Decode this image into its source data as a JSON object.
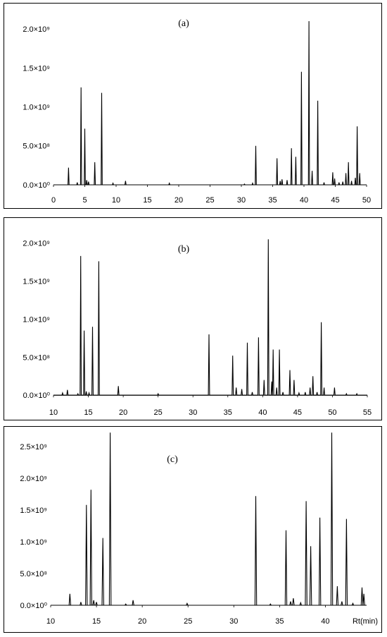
{
  "chart_data": [
    {
      "type": "line",
      "title": "(a)",
      "xlabel": "",
      "ylabel": "",
      "xlim": [
        0,
        50
      ],
      "ylim": [
        -100000000.0,
        2200000000.0
      ],
      "x_ticks": [
        "0",
        "5",
        "10",
        "15",
        "20",
        "25",
        "30",
        "35",
        "40",
        "45",
        "50"
      ],
      "y_ticks": [
        {
          "value": 0,
          "label": "0.0×10⁰"
        },
        {
          "value": 500000000.0,
          "label": "5.0×10⁸"
        },
        {
          "value": 1000000000.0,
          "label": "1.0×10⁹"
        },
        {
          "value": 1500000000.0,
          "label": "1.5×10⁹"
        },
        {
          "value": 2000000000.0,
          "label": "2.0×10⁹"
        }
      ],
      "peaks": [
        [
          2.4,
          220000000.0
        ],
        [
          3.8,
          30000000.0
        ],
        [
          4.4,
          1250000000.0
        ],
        [
          5.0,
          720000000.0
        ],
        [
          5.3,
          60000000.0
        ],
        [
          5.6,
          40000000.0
        ],
        [
          6.6,
          290000000.0
        ],
        [
          7.7,
          1180000000.0
        ],
        [
          9.5,
          20000000.0
        ],
        [
          11.5,
          50000000.0
        ],
        [
          18.5,
          20000000.0
        ],
        [
          30.5,
          10000000.0
        ],
        [
          31.8,
          20000000.0
        ],
        [
          32.3,
          500000000.0
        ],
        [
          35.7,
          340000000.0
        ],
        [
          36.2,
          50000000.0
        ],
        [
          36.5,
          70000000.0
        ],
        [
          37.3,
          60000000.0
        ],
        [
          38.0,
          470000000.0
        ],
        [
          38.7,
          360000000.0
        ],
        [
          39.6,
          1450000000.0
        ],
        [
          40.8,
          2100000000.0
        ],
        [
          41.3,
          180000000.0
        ],
        [
          42.2,
          1080000000.0
        ],
        [
          43.2,
          30000000.0
        ],
        [
          44.6,
          160000000.0
        ],
        [
          44.9,
          80000000.0
        ],
        [
          45.6,
          30000000.0
        ],
        [
          46.2,
          40000000.0
        ],
        [
          46.7,
          150000000.0
        ],
        [
          47.1,
          290000000.0
        ],
        [
          47.6,
          50000000.0
        ],
        [
          48.2,
          90000000.0
        ],
        [
          48.5,
          750000000.0
        ],
        [
          48.9,
          150000000.0
        ]
      ]
    },
    {
      "type": "line",
      "title": "(b)",
      "xlabel": "",
      "ylabel": "",
      "xlim": [
        10,
        55
      ],
      "ylim": [
        -100000000.0,
        2200000000.0
      ],
      "x_ticks": [
        "10",
        "15",
        "20",
        "25",
        "30",
        "35",
        "40",
        "45",
        "50",
        "55"
      ],
      "y_ticks": [
        {
          "value": 0,
          "label": "0.0×10⁰"
        },
        {
          "value": 500000000.0,
          "label": "5.0×10⁸"
        },
        {
          "value": 1000000000.0,
          "label": "1.0×10⁹"
        },
        {
          "value": 1500000000.0,
          "label": "1.5×10⁹"
        },
        {
          "value": 2000000000.0,
          "label": "2.0×10⁹"
        }
      ],
      "peaks": [
        [
          11.3,
          30000000.0
        ],
        [
          12.0,
          70000000.0
        ],
        [
          13.5,
          20000000.0
        ],
        [
          13.9,
          1830000000.0
        ],
        [
          14.4,
          850000000.0
        ],
        [
          14.7,
          50000000.0
        ],
        [
          15.1,
          30000000.0
        ],
        [
          15.6,
          900000000.0
        ],
        [
          16.5,
          1760000000.0
        ],
        [
          19.3,
          120000000.0
        ],
        [
          25.0,
          20000000.0
        ],
        [
          32.3,
          800000000.0
        ],
        [
          35.7,
          520000000.0
        ],
        [
          36.2,
          100000000.0
        ],
        [
          37.0,
          80000000.0
        ],
        [
          37.8,
          690000000.0
        ],
        [
          38.5,
          40000000.0
        ],
        [
          39.4,
          760000000.0
        ],
        [
          40.2,
          200000000.0
        ],
        [
          40.8,
          2050000000.0
        ],
        [
          41.3,
          180000000.0
        ],
        [
          41.5,
          600000000.0
        ],
        [
          42.0,
          100000000.0
        ],
        [
          42.4,
          600000000.0
        ],
        [
          42.9,
          40000000.0
        ],
        [
          43.9,
          330000000.0
        ],
        [
          44.5,
          200000000.0
        ],
        [
          45.2,
          30000000.0
        ],
        [
          46.1,
          40000000.0
        ],
        [
          46.8,
          100000000.0
        ],
        [
          47.2,
          250000000.0
        ],
        [
          47.8,
          40000000.0
        ],
        [
          48.4,
          960000000.0
        ],
        [
          48.8,
          100000000.0
        ],
        [
          50.3,
          100000000.0
        ],
        [
          52.0,
          20000000.0
        ],
        [
          53.5,
          20000000.0
        ]
      ]
    },
    {
      "type": "line",
      "title": "(c)",
      "xlabel": "Rt(min)",
      "ylabel": "",
      "xlim": [
        10,
        44.5
      ],
      "ylim": [
        -100000000.0,
        2700000000.0
      ],
      "x_ticks": [
        "10",
        "15",
        "20",
        "25",
        "30",
        "35",
        "40"
      ],
      "y_ticks": [
        {
          "value": 0,
          "label": "0.0×10⁰"
        },
        {
          "value": 500000000.0,
          "label": "5.0×10⁸"
        },
        {
          "value": 1000000000.0,
          "label": "1.0×10⁹"
        },
        {
          "value": 1500000000.0,
          "label": "1.5×10⁹"
        },
        {
          "value": 2000000000.0,
          "label": "2.0×10⁹"
        },
        {
          "value": 2500000000.0,
          "label": "2.5×10⁹"
        }
      ],
      "peaks": [
        [
          12.1,
          180000000.0
        ],
        [
          13.3,
          50000000.0
        ],
        [
          13.9,
          1580000000.0
        ],
        [
          14.4,
          1820000000.0
        ],
        [
          14.7,
          80000000.0
        ],
        [
          15.0,
          50000000.0
        ],
        [
          15.7,
          1060000000.0
        ],
        [
          16.5,
          2720000000.0
        ],
        [
          18.2,
          20000000.0
        ],
        [
          19.0,
          80000000.0
        ],
        [
          24.9,
          30000000.0
        ],
        [
          32.4,
          1720000000.0
        ],
        [
          34.0,
          20000000.0
        ],
        [
          35.7,
          1180000000.0
        ],
        [
          36.2,
          60000000.0
        ],
        [
          36.5,
          110000000.0
        ],
        [
          37.3,
          40000000.0
        ],
        [
          37.9,
          1640000000.0
        ],
        [
          38.4,
          930000000.0
        ],
        [
          39.4,
          1380000000.0
        ],
        [
          40.7,
          2720000000.0
        ],
        [
          41.3,
          300000000.0
        ],
        [
          41.8,
          60000000.0
        ],
        [
          42.3,
          1360000000.0
        ],
        [
          43.0,
          30000000.0
        ],
        [
          44.0,
          280000000.0
        ],
        [
          44.2,
          180000000.0
        ]
      ]
    }
  ]
}
